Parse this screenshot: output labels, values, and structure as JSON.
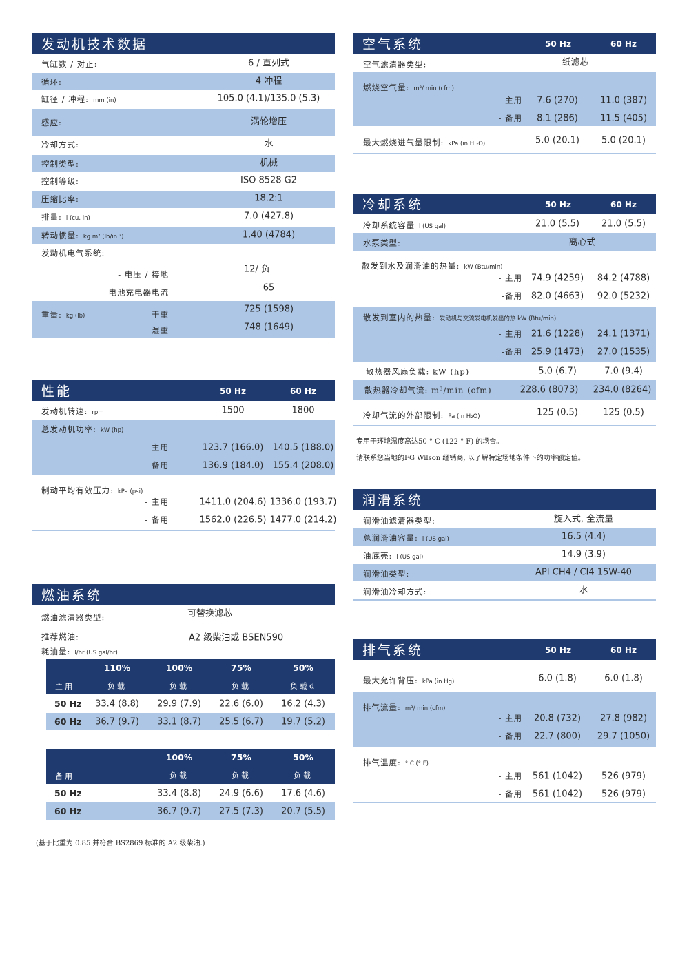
{
  "colors": {
    "header": "#1f3a6e",
    "shade": "#adc6e5",
    "text": "#2b2b2b"
  },
  "engine": {
    "title": "发动机技术数据",
    "rows": [
      {
        "label": "气缸数 / 对正:",
        "unit": "",
        "value": "6 /  直列式"
      },
      {
        "label": "循环:",
        "unit": "",
        "value": "4 冲程"
      },
      {
        "label": "缸径 / 冲程:",
        "unit": "mm (in)",
        "value": "105.0 (4.1)/135.0 (5.3)"
      },
      {
        "label": "感应:",
        "unit": "",
        "value": "涡轮增压"
      },
      {
        "label": "冷却方式:",
        "unit": "",
        "value": "水"
      },
      {
        "label": "控制类型:",
        "unit": "",
        "value": "机械"
      },
      {
        "label": "控制等级:",
        "unit": "",
        "value": "ISO 8528 G2"
      },
      {
        "label": "压缩比率:",
        "unit": "",
        "value": "18.2:1"
      },
      {
        "label": "排量:",
        "unit": "l (cu. in)",
        "value": "7.0 (427.8)"
      },
      {
        "label": "转动惯量:",
        "unit": "kg m² (lb/in ²)",
        "value": "1.40 (4784)"
      }
    ],
    "electrical": {
      "label": "发动机电气系统:",
      "voltage_label": "- 电压 / 接地",
      "voltage_value": "12/ 负",
      "charger_label": "-电池充电器电流",
      "charger_value": "65"
    },
    "weight": {
      "label": "重量:",
      "unit": "kg (lb)",
      "dry_label": "- 干重",
      "dry_value": "725 (1598)",
      "wet_label": "- 湿重",
      "wet_value": "748 (1649)"
    }
  },
  "air": {
    "title": "空气系统",
    "hz50": "50 Hz",
    "hz60": "60 Hz",
    "filter": {
      "label": "空气滤清器类型:",
      "value": "纸滤芯"
    },
    "combustion": {
      "label": "燃烧空气量:",
      "unit": "m³/ min (cfm)",
      "prime_label": "-主用",
      "prime": [
        "7.6 (270)",
        "11.0 (387)"
      ],
      "standby_label": "- 备用",
      "standby": [
        "8.1 (286)",
        "11.5 (405)"
      ]
    },
    "restriction": {
      "label": "最大燃烧进气量限制:",
      "unit": "kPa (in H ₂O)",
      "values": [
        "5.0 (20.1)",
        "5.0 (20.1)"
      ]
    }
  },
  "cooling": {
    "title": "冷却系统",
    "hz50": "50 Hz",
    "hz60": "60 Hz",
    "capacity": {
      "label": "冷却系统容量",
      "unit": "l (US gal)",
      "values": [
        "21.0 (5.5)",
        "21.0 (5.5)"
      ]
    },
    "pump": {
      "label": "水泵类型:",
      "value": "离心式"
    },
    "heat_water": {
      "label": "散发到水及润滑油的热量:",
      "unit": "kW (Btu/min)",
      "prime_label": "- 主用",
      "prime": [
        "74.9 (4259)",
        "84.2 (4788)"
      ],
      "standby_label": "-备用",
      "standby": [
        "82.0 (4663)",
        "92.0 (5232)"
      ]
    },
    "heat_room": {
      "label": "散发到室内的热量:",
      "sub": "发动机与交流发电机发出的热 kW (Btu/min)",
      "prime_label": "- 主用",
      "prime": [
        "21.6 (1228)",
        "24.1 (1371)"
      ],
      "standby_label": "-备用",
      "standby": [
        "25.9 (1473)",
        "27.0 (1535)"
      ]
    },
    "fan": {
      "label": "散热器风扇负载:  kW (hp)",
      "values": [
        "5.0 (6.7)",
        "7.0 (9.4)"
      ]
    },
    "airflow": {
      "label": "散热器冷却气流:  m³/min (cfm)",
      "values": [
        "228.6 (8073)",
        "234.0 (8264)"
      ]
    },
    "ext_restriction": {
      "label": "冷却气流的外部限制:",
      "unit": "Pa (in H₂O)",
      "values": [
        "125 (0.5)",
        "125 (0.5)"
      ]
    },
    "notes": [
      "专用于环境温度高达50 ° C (122 ° F) 的场合。",
      "请联系您当地的FG Wilson 经销商, 以了解特定场地条件下的功率额定值。"
    ]
  },
  "performance": {
    "title": "性能",
    "hz50": "50 Hz",
    "hz60": "60 Hz",
    "speed": {
      "label": "发动机转速:",
      "unit": "rpm",
      "values": [
        "1500",
        "1800"
      ]
    },
    "power": {
      "label": "总发动机功率:",
      "unit": "kW (hp)",
      "prime_label": "- 主用",
      "prime": [
        "123.7 (166.0)",
        "140.5 (188.0)"
      ],
      "standby_label": "- 备用",
      "standby": [
        "136.9 (184.0)",
        "155.4 (208.0)"
      ]
    },
    "bmep": {
      "label": "制动平均有效压力:",
      "unit": "kPa (psi)",
      "prime_label": "- 主用",
      "prime": [
        "1411.0 (204.6)",
        "1336.0 (193.7)"
      ],
      "standby_label": "- 备用",
      "standby": [
        "1562.0 (226.5)",
        "1477.0 (214.2)"
      ]
    }
  },
  "fuel": {
    "title": "燃油系统",
    "filter": {
      "label": "燃油滤清器类型:",
      "value": "可替换滤芯"
    },
    "recommended": {
      "label": "推荐燃油:",
      "value": "A2  级柴油或 BSEN590"
    },
    "consumption": {
      "label": "耗油量:",
      "unit": "l/hr (US gal/hr)"
    },
    "prime_table": {
      "corner": "主用",
      "cols": [
        {
          "pct": "110%",
          "load": "负载"
        },
        {
          "pct": "100%",
          "load": "负载"
        },
        {
          "pct": "75%",
          "load": "负载"
        },
        {
          "pct": "50%",
          "load": "负载d"
        }
      ],
      "rows": [
        {
          "hz": "50 Hz",
          "values": [
            "33.4 (8.8)",
            "29.9 (7.9)",
            "22.6 (6.0)",
            "16.2 (4.3)"
          ]
        },
        {
          "hz": "60 Hz",
          "values": [
            "36.7 (9.7)",
            "33.1 (8.7)",
            "25.5 (6.7)",
            "19.7 (5.2)"
          ]
        }
      ]
    },
    "standby_table": {
      "corner": "备用",
      "cols": [
        {
          "pct": "100%",
          "load": "负载"
        },
        {
          "pct": "75%",
          "load": "负载"
        },
        {
          "pct": "50%",
          "load": "负载"
        }
      ],
      "rows": [
        {
          "hz": "50 Hz",
          "values": [
            "33.4 (8.8)",
            "24.9 (6.6)",
            "17.6 (4.6)"
          ]
        },
        {
          "hz": "60 Hz",
          "values": [
            "36.7 (9.7)",
            "27.5 (7.3)",
            "20.7 (5.5)"
          ]
        }
      ]
    },
    "footnote": "(基于比重为 0.85  并符合 BS2869  标准的 A2  级柴油.)"
  },
  "lube": {
    "title": "润滑系统",
    "rows": [
      {
        "label": "润滑油滤清器类型:",
        "unit": "",
        "value": "旋入式, 全流量"
      },
      {
        "label": "总润滑油容量:",
        "unit": "l (US gal)",
        "value": "16.5 (4.4)"
      },
      {
        "label": "油底壳:",
        "unit": "l (US gal)",
        "value": "14.9 (3.9)"
      },
      {
        "label": "润滑油类型:",
        "unit": "",
        "value": "API CH4 / CI4 15W-40"
      },
      {
        "label": "润滑油冷却方式:",
        "unit": "",
        "value": "水"
      }
    ]
  },
  "exhaust": {
    "title": "排气系统",
    "hz50": "50 Hz",
    "hz60": "60 Hz",
    "backpressure": {
      "label": "最大允许背压:",
      "unit": "kPa (in Hg)",
      "values": [
        "6.0 (1.8)",
        "6.0 (1.8)"
      ]
    },
    "flow": {
      "label": "排气流量:",
      "unit": "m³/ min (cfm)",
      "prime_label": "- 主用",
      "prime": [
        "20.8 (732)",
        "27.8 (982)"
      ],
      "standby_label": "- 备用",
      "standby": [
        "22.7 (800)",
        "29.7 (1050)"
      ]
    },
    "temp": {
      "label": "排气温度:",
      "unit": "° C (° F)",
      "prime_label": "- 主用",
      "prime": [
        "561 (1042)",
        "526 (979)"
      ],
      "standby_label": "- 备用",
      "standby": [
        "561 (1042)",
        "526 (979)"
      ]
    }
  }
}
